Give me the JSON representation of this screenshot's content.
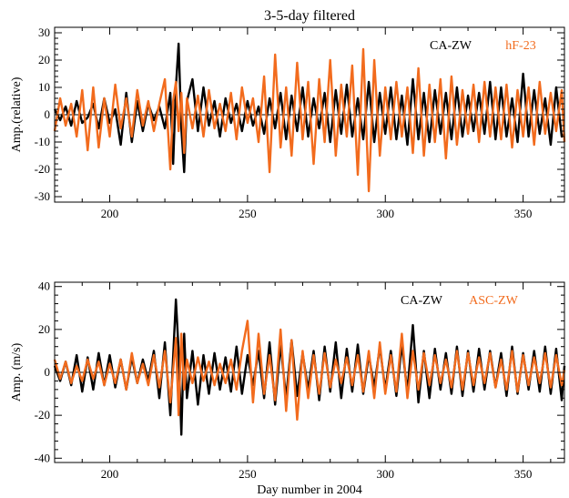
{
  "chart_data": [
    {
      "type": "line",
      "title": "3-5-day filtered",
      "xlabel": "",
      "ylabel": "Amp.(relative)",
      "xlim": [
        180,
        365
      ],
      "ylim": [
        -32,
        32
      ],
      "xticks": [
        200,
        250,
        300,
        350
      ],
      "yticks": [
        -30,
        -20,
        -10,
        0,
        10,
        20,
        30
      ],
      "grid": false,
      "legend_position": "top-right",
      "series": [
        {
          "name": "CA-ZW",
          "color": "#000000",
          "x": [
            180,
            182,
            184,
            186,
            188,
            190,
            192,
            194,
            196,
            198,
            200,
            202,
            204,
            206,
            208,
            210,
            212,
            214,
            216,
            218,
            220,
            222,
            223,
            224,
            225,
            226,
            227,
            228,
            230,
            232,
            234,
            236,
            238,
            240,
            242,
            244,
            246,
            248,
            250,
            252,
            254,
            256,
            258,
            260,
            262,
            264,
            266,
            268,
            270,
            272,
            274,
            276,
            278,
            280,
            282,
            284,
            286,
            288,
            290,
            292,
            294,
            296,
            298,
            300,
            302,
            304,
            306,
            308,
            310,
            312,
            314,
            316,
            318,
            320,
            322,
            324,
            326,
            328,
            330,
            332,
            334,
            336,
            338,
            340,
            342,
            344,
            346,
            348,
            350,
            352,
            354,
            356,
            358,
            360,
            362,
            364,
            365
          ],
          "values": [
            2,
            -2,
            3,
            -4,
            5,
            -3,
            -1,
            4,
            -5,
            6,
            -3,
            2,
            -11,
            8,
            -10,
            5,
            -6,
            4,
            -2,
            3,
            -5,
            8,
            -18,
            10,
            26,
            -5,
            -21,
            5,
            13,
            -6,
            10,
            -4,
            5,
            -8,
            6,
            -3,
            4,
            -6,
            5,
            -4,
            3,
            -7,
            6,
            -5,
            8,
            -9,
            7,
            -6,
            10,
            -8,
            6,
            -5,
            8,
            -10,
            9,
            -7,
            11,
            -8,
            6,
            -9,
            12,
            -10,
            8,
            -7,
            10,
            -9,
            7,
            -11,
            13,
            -9,
            8,
            -10,
            9,
            -7,
            8,
            -9,
            10,
            -8,
            7,
            -6,
            8,
            -7,
            12,
            -9,
            10,
            -8,
            6,
            -10,
            15,
            -8,
            9,
            -7,
            6,
            -11,
            10,
            -8,
            -7
          ]
        },
        {
          "name": "hF-23",
          "color": "#f26b1d",
          "x": [
            180,
            182,
            184,
            186,
            188,
            190,
            192,
            194,
            196,
            198,
            200,
            202,
            204,
            206,
            208,
            210,
            212,
            214,
            216,
            218,
            220,
            222,
            223,
            224,
            225,
            226,
            227,
            228,
            230,
            232,
            234,
            236,
            238,
            240,
            242,
            244,
            246,
            248,
            250,
            252,
            254,
            256,
            258,
            260,
            262,
            264,
            266,
            268,
            270,
            272,
            274,
            276,
            278,
            280,
            282,
            284,
            286,
            288,
            290,
            292,
            294,
            296,
            298,
            300,
            302,
            304,
            306,
            308,
            310,
            312,
            314,
            316,
            318,
            320,
            322,
            324,
            326,
            328,
            330,
            332,
            334,
            336,
            338,
            340,
            342,
            344,
            346,
            348,
            350,
            352,
            354,
            356,
            358,
            360,
            362,
            364,
            365
          ],
          "values": [
            -6,
            6,
            -4,
            4,
            -8,
            9,
            -13,
            10,
            -12,
            6,
            -8,
            11,
            -5,
            6,
            -8,
            9,
            -4,
            5,
            -6,
            4,
            13,
            -20,
            5,
            12,
            -6,
            8,
            -14,
            6,
            -5,
            7,
            -8,
            9,
            -5,
            4,
            -6,
            8,
            -9,
            10,
            -3,
            6,
            -10,
            14,
            -21,
            22,
            -12,
            10,
            -15,
            19,
            -9,
            12,
            -18,
            13,
            -10,
            20,
            -15,
            11,
            -8,
            18,
            -22,
            24,
            -28,
            20,
            -15,
            10,
            -9,
            12,
            -8,
            10,
            -14,
            17,
            -15,
            11,
            -10,
            13,
            -16,
            14,
            -11,
            9,
            -7,
            11,
            -10,
            12,
            -8,
            10,
            -9,
            11,
            -12,
            9,
            -8,
            10,
            -11,
            12,
            -7,
            8,
            -6,
            9,
            -10
          ]
        }
      ]
    },
    {
      "type": "line",
      "title": "",
      "xlabel": "Day number in 2004",
      "ylabel": "Amp. (m/s)",
      "xlim": [
        180,
        365
      ],
      "ylim": [
        -42,
        42
      ],
      "xticks": [
        200,
        250,
        300,
        350
      ],
      "yticks": [
        -40,
        -20,
        0,
        20,
        40
      ],
      "grid": false,
      "legend_position": "top-right",
      "series": [
        {
          "name": "CA-ZW",
          "color": "#000000",
          "x": [
            180,
            182,
            184,
            186,
            188,
            190,
            192,
            194,
            196,
            198,
            200,
            202,
            204,
            206,
            208,
            210,
            212,
            214,
            216,
            218,
            220,
            222,
            224,
            225,
            226,
            227,
            228,
            230,
            232,
            234,
            236,
            238,
            240,
            242,
            244,
            246,
            248,
            250,
            252,
            254,
            256,
            258,
            260,
            262,
            264,
            266,
            268,
            270,
            272,
            274,
            276,
            278,
            280,
            282,
            284,
            286,
            288,
            290,
            292,
            294,
            296,
            298,
            300,
            302,
            304,
            306,
            308,
            310,
            312,
            314,
            316,
            318,
            320,
            322,
            324,
            326,
            328,
            330,
            332,
            334,
            336,
            338,
            340,
            342,
            344,
            346,
            348,
            350,
            352,
            354,
            356,
            358,
            360,
            362,
            364,
            365
          ],
          "values": [
            3,
            -4,
            5,
            -6,
            8,
            -9,
            7,
            -8,
            9,
            -6,
            8,
            -7,
            6,
            -8,
            7,
            -5,
            6,
            -4,
            10,
            -12,
            14,
            -20,
            34,
            10,
            -29,
            18,
            -12,
            10,
            -15,
            8,
            -10,
            9,
            -8,
            7,
            -9,
            12,
            -10,
            8,
            -6,
            10,
            -12,
            14,
            -15,
            13,
            -12,
            15,
            -11,
            9,
            -8,
            10,
            -13,
            12,
            -9,
            14,
            -12,
            11,
            -9,
            13,
            -10,
            8,
            -7,
            12,
            -8,
            10,
            -11,
            13,
            -9,
            22,
            -14,
            10,
            -12,
            11,
            -8,
            9,
            -10,
            12,
            -11,
            10,
            -9,
            11,
            -8,
            10,
            -7,
            9,
            -11,
            12,
            -10,
            9,
            -8,
            10,
            -9,
            12,
            -10,
            11,
            -13,
            3
          ]
        },
        {
          "name": "ASC-ZW",
          "color": "#f26b1d",
          "x": [
            180,
            182,
            184,
            186,
            188,
            190,
            192,
            194,
            196,
            198,
            200,
            202,
            204,
            206,
            208,
            210,
            212,
            214,
            216,
            218,
            220,
            222,
            224,
            225,
            226,
            227,
            228,
            230,
            232,
            234,
            236,
            238,
            240,
            242,
            244,
            246,
            248,
            250,
            252,
            254,
            256,
            258,
            260,
            262,
            264,
            266,
            268,
            270,
            272,
            274,
            276,
            278,
            280,
            282,
            284,
            286,
            288,
            290,
            292,
            294,
            296,
            298,
            300,
            302,
            304,
            306,
            308,
            310,
            312,
            314,
            316,
            318,
            320,
            322,
            324,
            326,
            328,
            330,
            332,
            334,
            336,
            338,
            340,
            342,
            344,
            346,
            348,
            350,
            352,
            354,
            356,
            358,
            360,
            362,
            364,
            365
          ],
          "values": [
            6,
            -3,
            5,
            -5,
            3,
            -4,
            6,
            -3,
            5,
            -6,
            4,
            -5,
            6,
            -8,
            9,
            -5,
            4,
            -6,
            8,
            -7,
            10,
            -14,
            16,
            -20,
            18,
            -8,
            6,
            -5,
            7,
            -4,
            5,
            -6,
            4,
            -5,
            6,
            -8,
            10,
            24,
            -14,
            18,
            -10,
            8,
            -13,
            20,
            -18,
            15,
            -22,
            10,
            -12,
            8,
            -10,
            9,
            -7,
            6,
            -5,
            7,
            -6,
            8,
            -9,
            10,
            -12,
            14,
            -10,
            8,
            -9,
            18,
            -12,
            10,
            -8,
            9,
            -6,
            8,
            -5,
            6,
            -7,
            10,
            -8,
            9,
            -6,
            7,
            -5,
            9,
            -7,
            6,
            -8,
            10,
            -9,
            8,
            -6,
            7,
            -5,
            9,
            -7,
            8,
            -6,
            1
          ]
        }
      ]
    }
  ]
}
